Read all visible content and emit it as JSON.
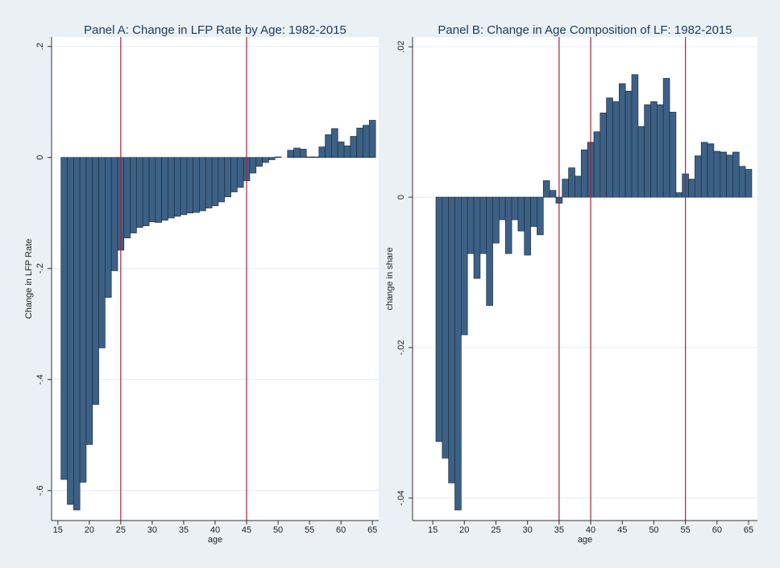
{
  "chart_data": [
    {
      "type": "bar",
      "title": "Panel A: Change in LFP Rate by Age: 1982-2015",
      "x_label": "age",
      "y_label": "Change in LFP Rate",
      "x": [
        16,
        17,
        18,
        19,
        20,
        21,
        22,
        23,
        24,
        25,
        26,
        27,
        28,
        29,
        30,
        31,
        32,
        33,
        34,
        35,
        36,
        37,
        38,
        39,
        40,
        41,
        42,
        43,
        44,
        45,
        46,
        47,
        48,
        49,
        50,
        51,
        52,
        53,
        54,
        55,
        56,
        57,
        58,
        59,
        60,
        61,
        62,
        63,
        64,
        65
      ],
      "values": [
        -0.58,
        -0.625,
        -0.635,
        -0.585,
        -0.517,
        -0.445,
        -0.343,
        -0.252,
        -0.204,
        -0.167,
        -0.145,
        -0.136,
        -0.126,
        -0.123,
        -0.116,
        -0.117,
        -0.113,
        -0.109,
        -0.106,
        -0.103,
        -0.1,
        -0.099,
        -0.096,
        -0.091,
        -0.087,
        -0.08,
        -0.071,
        -0.062,
        -0.054,
        -0.042,
        -0.028,
        -0.016,
        -0.009,
        -0.004,
        0.001,
        0,
        0.013,
        0.017,
        0.015,
        0.001,
        0.001,
        0.019,
        0.041,
        0.052,
        0.028,
        0.021,
        0.038,
        0.053,
        0.058,
        0.067
      ],
      "color": "#3d6185",
      "vlines": [
        25,
        45
      ],
      "vline_color": "#a3233a",
      "xlim": [
        14,
        66
      ],
      "xticks": [
        15,
        20,
        25,
        30,
        35,
        40,
        45,
        50,
        55,
        60,
        65
      ],
      "ylim": [
        -0.654,
        0.217
      ],
      "yticks": [
        {
          "value": -0.6,
          "label": "-.6"
        },
        {
          "value": -0.4,
          "label": "-.4"
        },
        {
          "value": -0.2,
          "label": "-.2"
        },
        0,
        {
          "value": 0.2,
          "label": ".2"
        }
      ],
      "grid": true
    },
    {
      "type": "bar",
      "title": "Panel B: Change in Age Composition of LF: 1982-2015",
      "x_label": "age",
      "y_label": "change in share",
      "x": [
        16,
        17,
        18,
        19,
        20,
        21,
        22,
        23,
        24,
        25,
        26,
        27,
        28,
        29,
        30,
        31,
        32,
        33,
        34,
        35,
        36,
        37,
        38,
        39,
        40,
        41,
        42,
        43,
        44,
        45,
        46,
        47,
        48,
        49,
        50,
        51,
        52,
        53,
        54,
        55,
        56,
        57,
        58,
        59,
        60,
        61,
        62,
        63,
        64,
        65
      ],
      "values": [
        -0.0325,
        -0.0347,
        -0.038,
        -0.0416,
        -0.0183,
        -0.0075,
        -0.0108,
        -0.0075,
        -0.0144,
        -0.0061,
        -0.003,
        -0.0075,
        -0.003,
        -0.0045,
        -0.0077,
        -0.0039,
        -0.005,
        0.0022,
        0.0009,
        -0.0008,
        0.0024,
        0.0039,
        0.0028,
        0.0063,
        0.0073,
        0.0087,
        0.0112,
        0.0132,
        0.0127,
        0.0151,
        0.0141,
        0.0163,
        0.0094,
        0.0123,
        0.0127,
        0.0123,
        0.0158,
        0.0113,
        0.0006,
        0.0031,
        0.0024,
        0.0055,
        0.0073,
        0.0071,
        0.0061,
        0.006,
        0.0056,
        0.006,
        0.0041,
        0.0037
      ],
      "color": "#3d6185",
      "vlines": [
        35,
        40,
        55
      ],
      "vline_color": "#a3233a",
      "xlim": [
        11.8,
        66.4
      ],
      "xticks": [
        15,
        20,
        25,
        30,
        35,
        40,
        45,
        50,
        55,
        60,
        65
      ],
      "ylim": [
        -0.043,
        0.0213
      ],
      "yticks": [
        {
          "value": -0.04,
          "label": "-.04"
        },
        {
          "value": -0.02,
          "label": "-.02"
        },
        0,
        {
          "value": 0.02,
          "label": ".02"
        }
      ],
      "grid": true
    }
  ]
}
